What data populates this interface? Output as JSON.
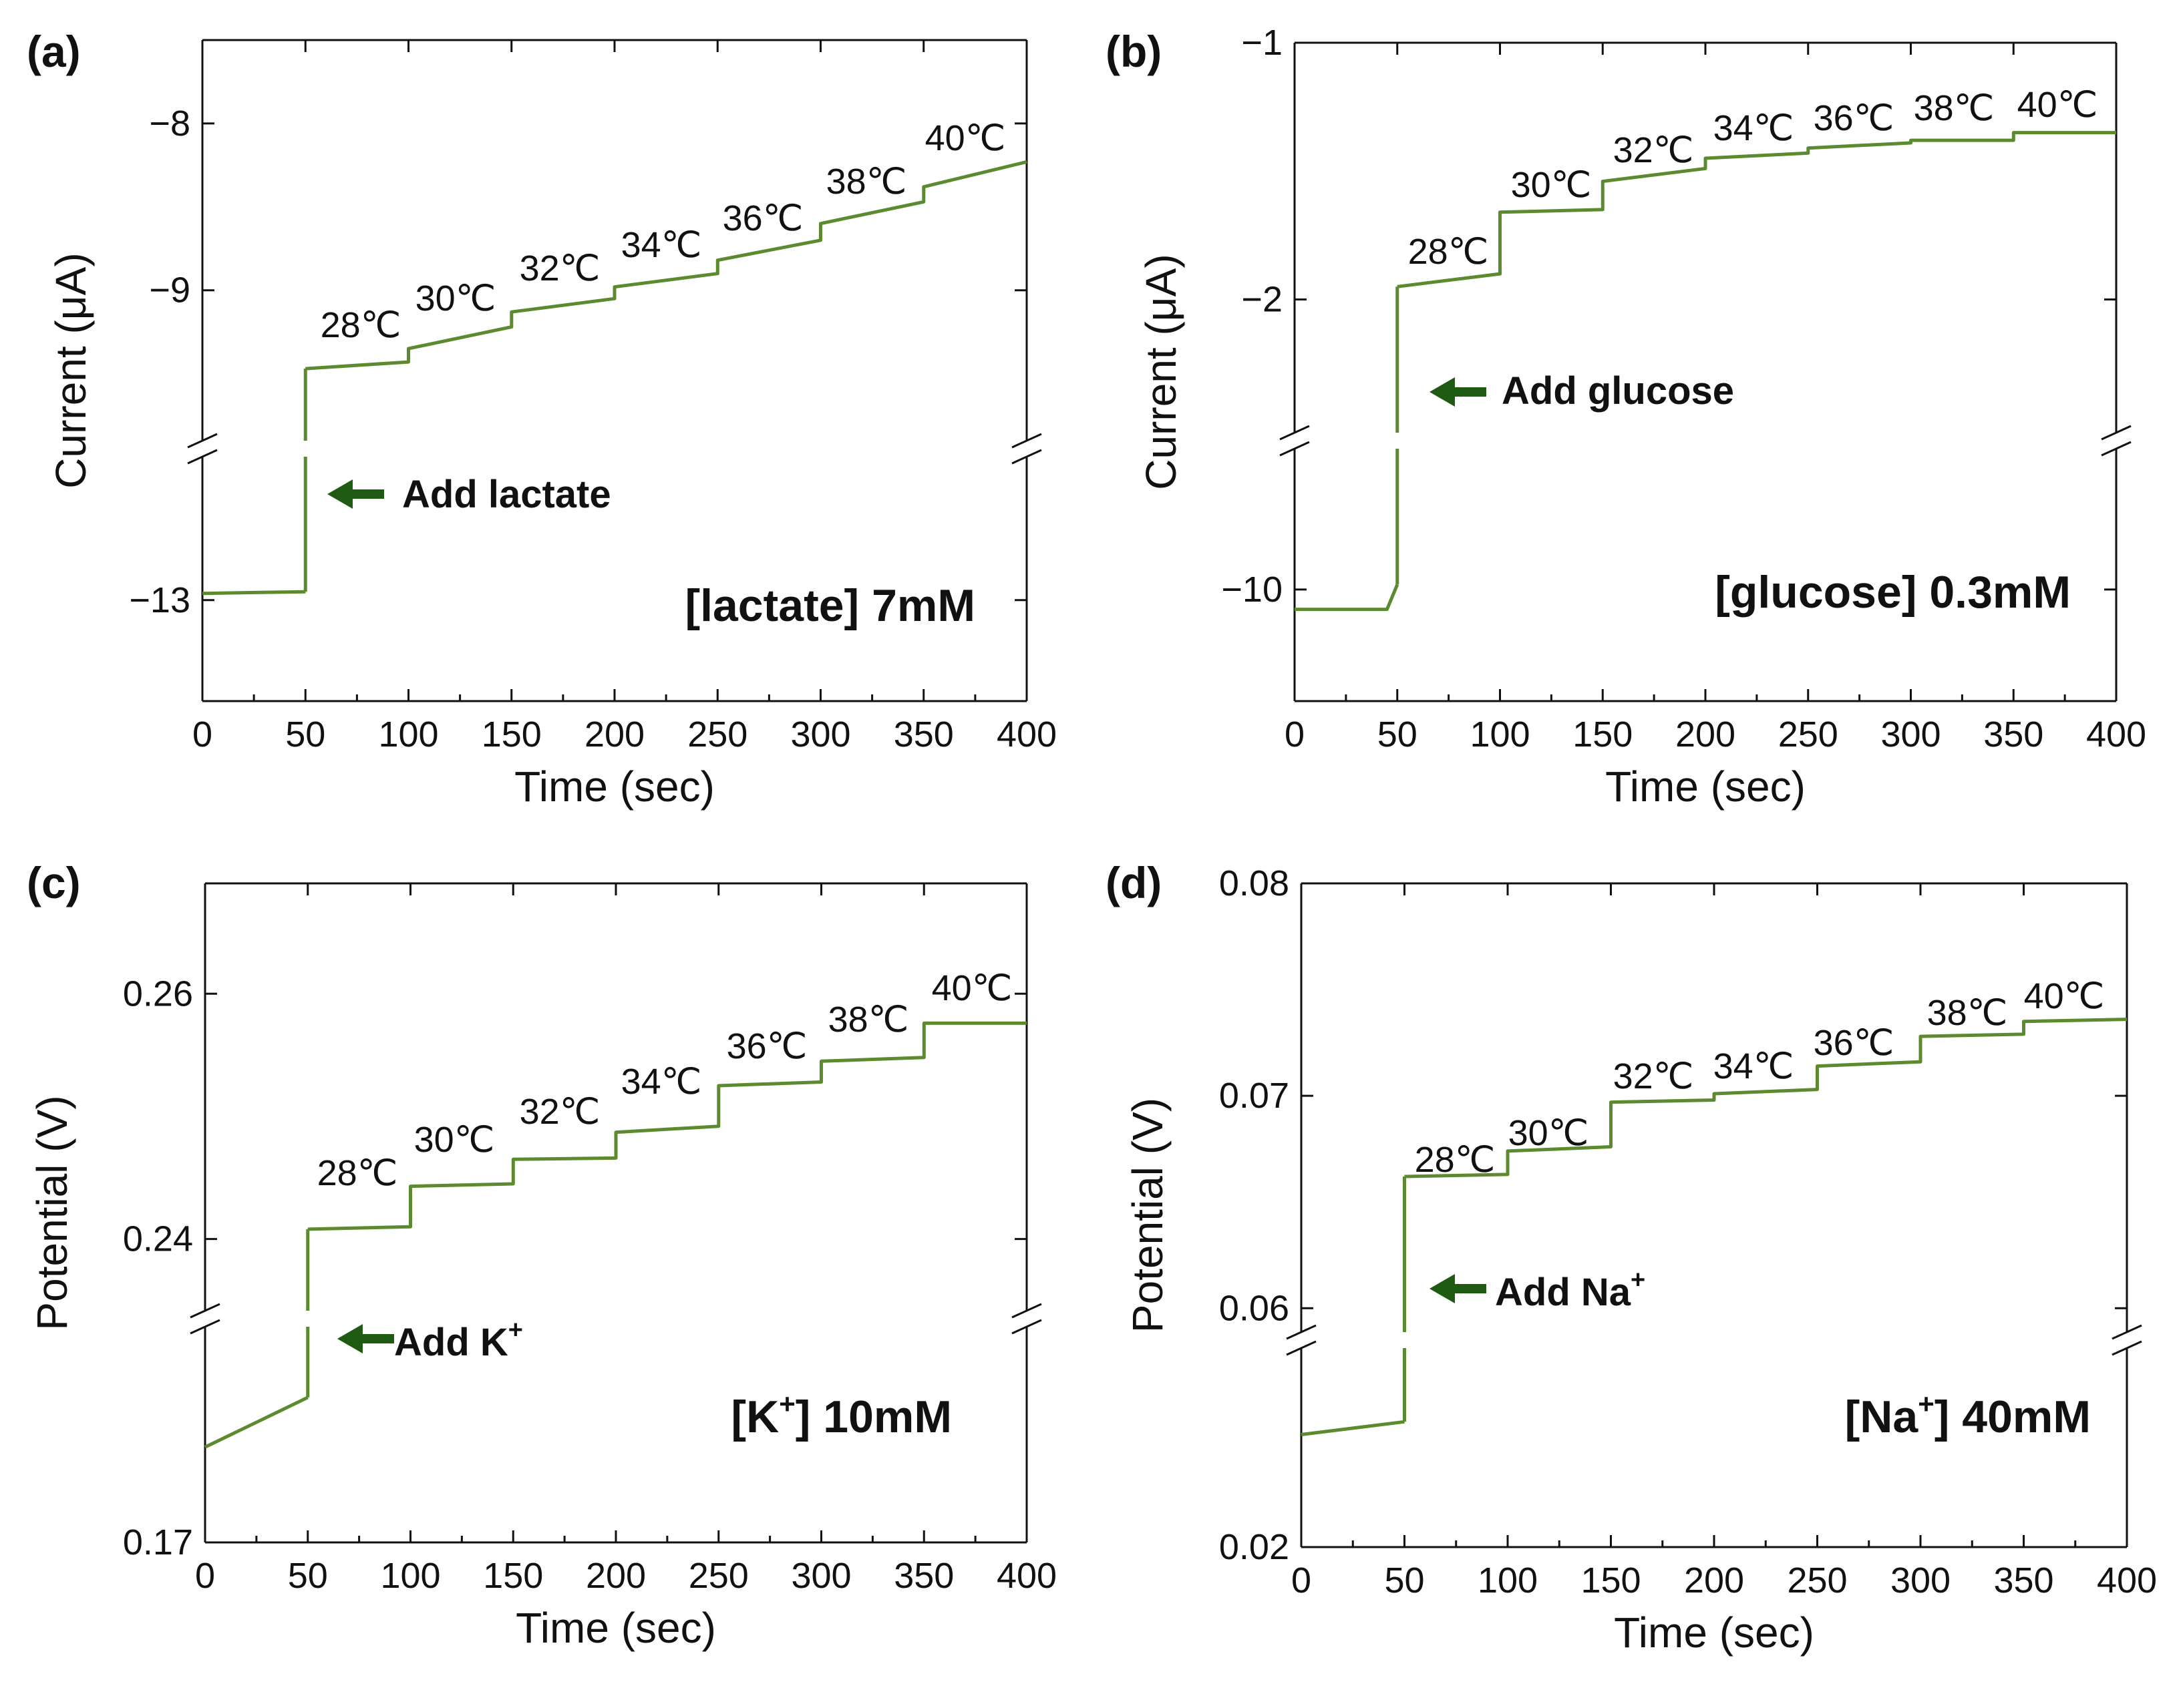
{
  "figure": {
    "colors": {
      "trace": "#5c8a2e",
      "arrow": "#1e5a12",
      "axis": "#111111"
    }
  },
  "chart_data": [
    {
      "type": "line",
      "panel": "(a)",
      "xlabel": "Time (sec)",
      "ylabel": "Current (μA)",
      "xlim": [
        0,
        400
      ],
      "xticks": [
        "0",
        "50",
        "100",
        "150",
        "200",
        "250",
        "300",
        "350",
        "400"
      ],
      "axis_break": true,
      "lower_segment": {
        "ylim": [
          -14.8,
          -10.3
        ],
        "ticks": [
          "-13"
        ]
      },
      "upper_segment": {
        "ylim": [
          -9.95,
          -7.5
        ],
        "ticks": [
          "-9",
          "-8"
        ]
      },
      "temperature_labels": [
        "28℃",
        "30℃",
        "32℃",
        "34℃",
        "36℃",
        "38℃",
        "40℃"
      ],
      "add_annotation": "Add lactate",
      "concentration": "[lactate] 7mM",
      "series": [
        {
          "segment": "lower",
          "x": [
            0,
            50
          ],
          "y": [
            -12.88,
            -12.85
          ]
        },
        {
          "segment": "upper",
          "x": [
            50,
            100,
            100,
            150,
            150,
            200,
            200,
            250,
            250,
            300,
            300,
            350,
            350,
            400
          ],
          "y": [
            -9.47,
            -9.43,
            -9.35,
            -9.22,
            -9.13,
            -9.05,
            -8.98,
            -8.9,
            -8.82,
            -8.7,
            -8.6,
            -8.47,
            -8.38,
            -8.23
          ]
        }
      ]
    },
    {
      "type": "line",
      "panel": "(b)",
      "xlabel": "Time (sec)",
      "ylabel": "Current (μA)",
      "xlim": [
        0,
        400
      ],
      "xticks": [
        "0",
        "50",
        "100",
        "150",
        "200",
        "250",
        "300",
        "350",
        "400"
      ],
      "axis_break": true,
      "lower_segment": {
        "ylim": [
          -10.45,
          -9.4
        ],
        "ticks": [
          "-10"
        ]
      },
      "upper_segment": {
        "ylim": [
          -2.55,
          -1
        ],
        "ticks": [
          "-2",
          "-1"
        ]
      },
      "temperature_labels": [
        "28℃",
        "30℃",
        "32℃",
        "34℃",
        "36℃",
        "38℃",
        "40℃"
      ],
      "add_annotation": "Add glucose",
      "concentration": "[glucose] 0.3mM",
      "series": [
        {
          "segment": "lower",
          "x": [
            0,
            45,
            50
          ],
          "y": [
            -10.08,
            -10.08,
            -9.98
          ]
        },
        {
          "segment": "upper",
          "x": [
            50,
            100,
            100,
            150,
            150,
            200,
            200,
            250,
            250,
            300,
            300,
            350,
            350,
            400
          ],
          "y": [
            -1.95,
            -1.9,
            -1.66,
            -1.65,
            -1.54,
            -1.49,
            -1.45,
            -1.43,
            -1.41,
            -1.39,
            -1.38,
            -1.38,
            -1.35,
            -1.35
          ]
        }
      ]
    },
    {
      "type": "line",
      "panel": "(c)",
      "xlabel": "Time (sec)",
      "ylabel": "Potential (V)",
      "xlim": [
        0,
        400
      ],
      "xticks": [
        "0",
        "50",
        "100",
        "150",
        "200",
        "250",
        "300",
        "350",
        "400"
      ],
      "axis_break": true,
      "lower_segment": {
        "ylim": [
          0.17,
          0.197
        ],
        "ticks": [
          "0.17"
        ]
      },
      "upper_segment": {
        "ylim": [
          0.2335,
          0.269
        ],
        "ticks": [
          "0.24",
          "0.26"
        ]
      },
      "temperature_labels": [
        "28℃",
        "30℃",
        "32℃",
        "34℃",
        "36℃",
        "38℃",
        "40℃"
      ],
      "add_annotation": "Add K",
      "add_superscript": "+",
      "concentration": "[K",
      "concentration_superscript": "+",
      "concentration_suffix": "] 10mM",
      "series": [
        {
          "segment": "lower",
          "x": [
            0,
            50
          ],
          "y": [
            0.1815,
            0.1875
          ]
        },
        {
          "segment": "upper",
          "x": [
            50,
            100,
            100,
            150,
            150,
            200,
            200,
            250,
            250,
            300,
            300,
            350,
            350,
            400
          ],
          "y": [
            0.2408,
            0.241,
            0.2443,
            0.2445,
            0.2465,
            0.2466,
            0.2487,
            0.2492,
            0.2525,
            0.2528,
            0.2545,
            0.2548,
            0.2576,
            0.2576
          ]
        }
      ]
    },
    {
      "type": "line",
      "panel": "(d)",
      "xlabel": "Time (sec)",
      "ylabel": "Potential (V)",
      "xlim": [
        0,
        400
      ],
      "xticks": [
        "0",
        "50",
        "100",
        "150",
        "200",
        "250",
        "300",
        "350",
        "400"
      ],
      "axis_break": true,
      "lower_segment": {
        "ylim": [
          0.02,
          0.0555
        ],
        "ticks": [
          "0.02"
        ]
      },
      "upper_segment": {
        "ylim": [
          0.0585,
          0.08
        ],
        "ticks": [
          "0.06",
          "0.07",
          "0.08"
        ]
      },
      "temperature_labels": [
        "28℃",
        "30℃",
        "32℃",
        "34℃",
        "36℃",
        "38℃",
        "40℃"
      ],
      "add_annotation": "Add Na",
      "add_superscript": "+",
      "concentration": "[Na",
      "concentration_superscript": "+",
      "concentration_suffix": "] 40mM",
      "series": [
        {
          "segment": "lower",
          "x": [
            0,
            50
          ],
          "y": [
            0.0393,
            0.0415
          ]
        },
        {
          "segment": "upper",
          "x": [
            50,
            100,
            100,
            150,
            150,
            200,
            200,
            250,
            250,
            300,
            300,
            350,
            350,
            400
          ],
          "y": [
            0.0662,
            0.0663,
            0.0674,
            0.0676,
            0.0697,
            0.0698,
            0.0701,
            0.0703,
            0.0714,
            0.0716,
            0.0728,
            0.0729,
            0.0735,
            0.0736
          ]
        }
      ]
    }
  ]
}
